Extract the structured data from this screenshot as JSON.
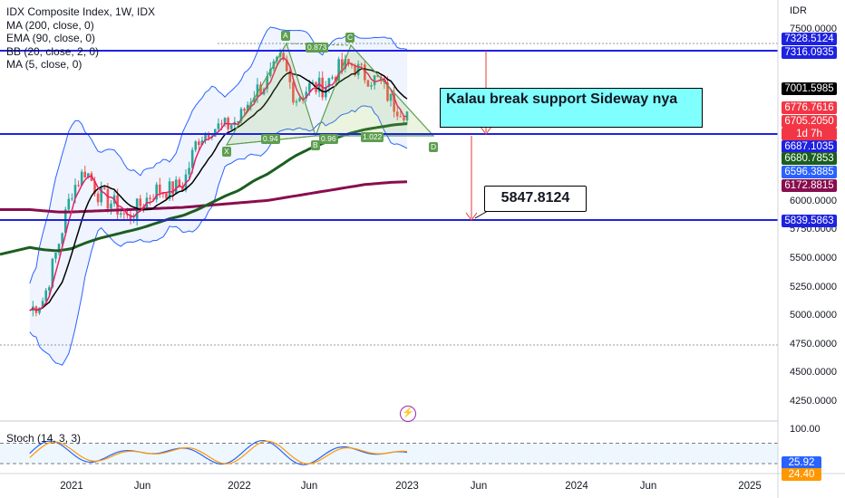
{
  "legend": {
    "title": "IDX Composite Index, 1W, IDX",
    "ind1": "MA (200, close, 0)",
    "ind2": "EMA (90, close, 0)",
    "ind3": "BB (20, close, 2, 0)",
    "ind4": "MA (5, close, 0)"
  },
  "stoch": {
    "label": "Stoch (14, 3, 3)",
    "value_k": "25.92",
    "value_d": "24.40",
    "levels": [
      80,
      20
    ]
  },
  "currency": "IDR",
  "price_scale": [
    "7500.0000",
    "6000.0000",
    "5750.0000",
    "5500.0000",
    "5250.0000",
    "5000.0000",
    "4750.0000",
    "4500.0000",
    "4250.0000"
  ],
  "stoch_scale": [
    "100.00"
  ],
  "price_tags": [
    {
      "value": "7328.5124",
      "bg": "#1e22e0"
    },
    {
      "value": "7316.0935",
      "bg": "#1e22e0"
    },
    {
      "value": "7001.5985",
      "bg": "#000000"
    },
    {
      "value": "6776.7616",
      "bg": "#f23645"
    },
    {
      "value": "6705.2050",
      "bg": "#f23645"
    },
    {
      "value": "1d 7h",
      "bg": "#f23645"
    },
    {
      "value": "6687.1035",
      "bg": "#1e22e0"
    },
    {
      "value": "6680.7853",
      "bg": "#1b5e20"
    },
    {
      "value": "6596.3885",
      "bg": "#2962ff"
    },
    {
      "value": "6172.8815",
      "bg": "#880e4f"
    },
    {
      "value": "5839.5863",
      "bg": "#1e22e0"
    }
  ],
  "x_axis": [
    "2021",
    "Jun",
    "2022",
    "Jun",
    "2023",
    "Jun",
    "2024",
    "Jun",
    "2025"
  ],
  "annotations": {
    "support_note": "Kalau break support Sideway nya",
    "target": "5847.8124"
  },
  "pattern_labels": {
    "points": [
      "X",
      "A",
      "B",
      "C",
      "D"
    ],
    "ratios": [
      "0.94",
      "0.96",
      "1.022",
      "0.873"
    ]
  },
  "colors": {
    "up": "#26a69a",
    "down": "#ef5350",
    "ma200": "#880e4f",
    "ema90": "#1b5e20",
    "bb": "#2962ff",
    "ma5": "#e91e63",
    "hline": "#1e22e0",
    "pattern": "#5d9e4f",
    "callout_bg": "#80ffff"
  },
  "chart_data": {
    "type": "line",
    "title": "IDX Composite Index, 1W, IDX",
    "ylabel": "IDR",
    "ylim": [
      4200,
      7700
    ],
    "x": [
      "2020-10",
      "2020-11",
      "2020-12",
      "2021-01",
      "2021-02",
      "2021-03",
      "2021-04",
      "2021-05",
      "2021-06",
      "2021-07",
      "2021-08",
      "2021-09",
      "2021-10",
      "2021-11",
      "2021-12",
      "2022-01",
      "2022-02",
      "2022-03",
      "2022-04",
      "2022-05",
      "2022-06",
      "2022-07",
      "2022-08",
      "2022-09",
      "2022-10",
      "2022-11",
      "2022-12",
      "2023-01"
    ],
    "series": [
      {
        "name": "IDX Composite Index",
        "values": [
          5050,
          5150,
          5600,
          6100,
          6280,
          6050,
          5980,
          5850,
          5980,
          6100,
          6100,
          6150,
          6550,
          6650,
          6650,
          6720,
          6950,
          7050,
          7250,
          6900,
          7000,
          7000,
          7150,
          7200,
          7100,
          7050,
          6850,
          6780
        ]
      },
      {
        "name": "MA (200, close, 0)",
        "values": [
          5930,
          5920,
          5910,
          5910,
          5915,
          5920,
          5925,
          5930,
          5935,
          5940,
          5945,
          5950,
          5960,
          5970,
          5980,
          5990,
          6000,
          6010,
          6030,
          6050,
          6070,
          6090,
          6110,
          6130,
          6150,
          6160,
          6170,
          6173
        ]
      },
      {
        "name": "EMA (90, close, 0)",
        "values": [
          5600,
          5580,
          5570,
          5590,
          5640,
          5680,
          5710,
          5740,
          5770,
          5810,
          5850,
          5880,
          5930,
          5990,
          6050,
          6100,
          6180,
          6240,
          6320,
          6400,
          6460,
          6510,
          6560,
          6600,
          6630,
          6650,
          6670,
          6681
        ]
      }
    ],
    "horizontal_levels": [
      7328.5124,
      7316.0935,
      6687.1035,
      5839.5863
    ],
    "grid": false,
    "legend_position": "top-left"
  }
}
